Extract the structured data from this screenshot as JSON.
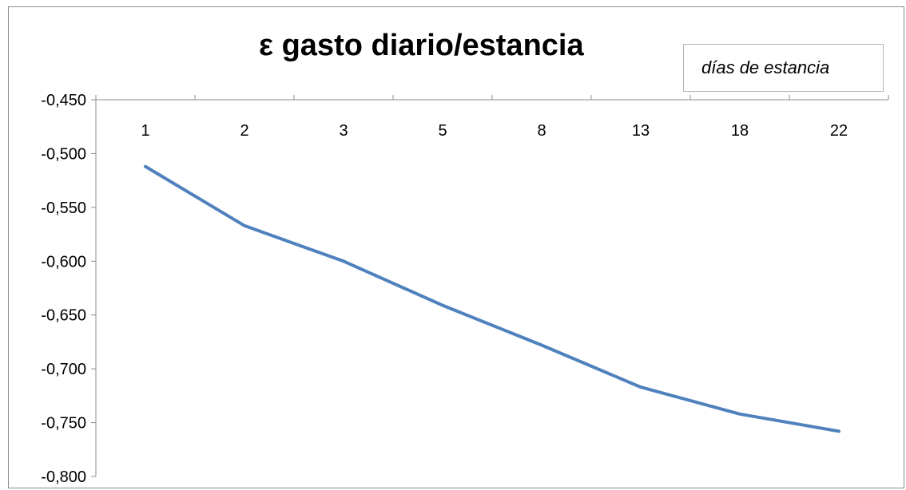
{
  "chart_data": {
    "type": "line",
    "title": "ε gasto diario/estancia",
    "xlabel": "",
    "ylabel": "",
    "categories": [
      "1",
      "2",
      "3",
      "5",
      "8",
      "13",
      "18",
      "22"
    ],
    "series": [
      {
        "name": "días de estancia",
        "values": [
          -0.512,
          -0.567,
          -0.6,
          -0.641,
          -0.678,
          -0.717,
          -0.742,
          -0.758
        ]
      }
    ],
    "ylim": [
      -0.8,
      -0.45
    ],
    "yticks": [
      "-0,450",
      "-0,500",
      "-0,550",
      "-0,600",
      "-0,650",
      "-0,700",
      "-0,750",
      "-0,800"
    ],
    "x_axis_position": "top",
    "grid": false,
    "legend_position": "top-right",
    "line_color": "#4f81bd"
  }
}
